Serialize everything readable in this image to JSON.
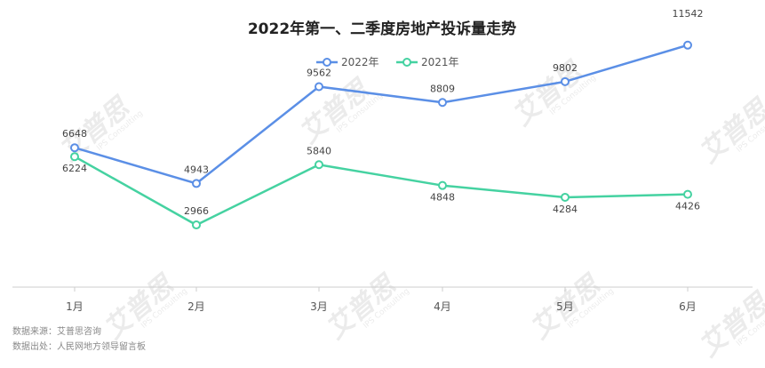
{
  "chart_data": {
    "type": "line",
    "title": "2022年第一、二季度房地产投诉量走势",
    "categories": [
      "1月",
      "2月",
      "3月",
      "4月",
      "5月",
      "6月"
    ],
    "series": [
      {
        "name": "2022年",
        "color": "#5b8fe6",
        "values": [
          6648,
          4943,
          9562,
          8809,
          9802,
          11542
        ]
      },
      {
        "name": "2021年",
        "color": "#45d2a1",
        "values": [
          6224,
          2966,
          5840,
          4848,
          4284,
          4426
        ]
      }
    ],
    "ylim": [
      0,
      12000
    ],
    "grid": false,
    "legend": "top-center"
  },
  "footnotes": {
    "source": "数据来源：艾普思咨询",
    "origin": "数据出处：人民网地方领导留言板"
  },
  "watermark": {
    "brand": "艾普思",
    "english": "IPS Consulting"
  }
}
